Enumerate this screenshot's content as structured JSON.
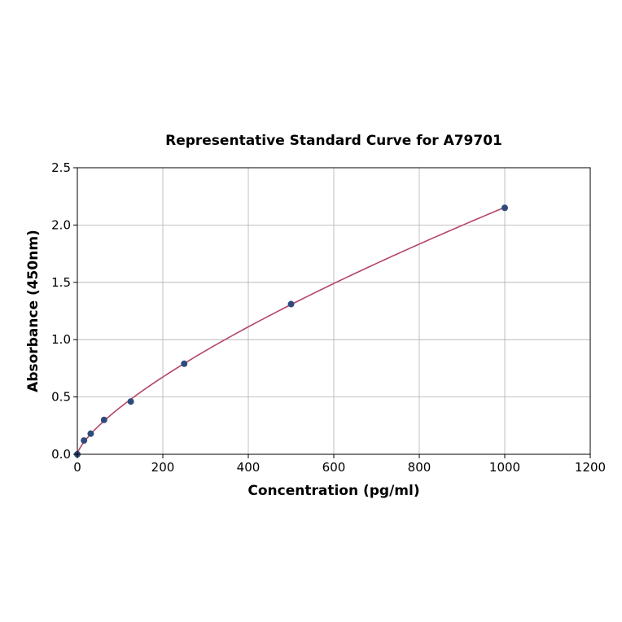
{
  "chart_data": {
    "type": "scatter",
    "title": "Representative Standard Curve for A79701",
    "xlabel": "Concentration (pg/ml)",
    "ylabel": "Absorbance (450nm)",
    "xlim": [
      0,
      1200
    ],
    "ylim": [
      0,
      2.5
    ],
    "xticks": [
      "0",
      "200",
      "400",
      "600",
      "800",
      "1000",
      "1200"
    ],
    "yticks": [
      "0.0",
      "0.5",
      "1.0",
      "1.5",
      "2.0",
      "2.5"
    ],
    "grid": true,
    "points": {
      "x": [
        0,
        15.6,
        31.25,
        62.5,
        125,
        250,
        500,
        1000
      ],
      "y": [
        0.0,
        0.12,
        0.18,
        0.3,
        0.46,
        0.79,
        1.31,
        2.15
      ]
    },
    "fit": {
      "model": "power",
      "a": 0.0147,
      "b": 0.722
    },
    "colors": {
      "point": "#2f4b7c",
      "curve": "#b5456a",
      "grid": "#b0b0b0"
    }
  }
}
